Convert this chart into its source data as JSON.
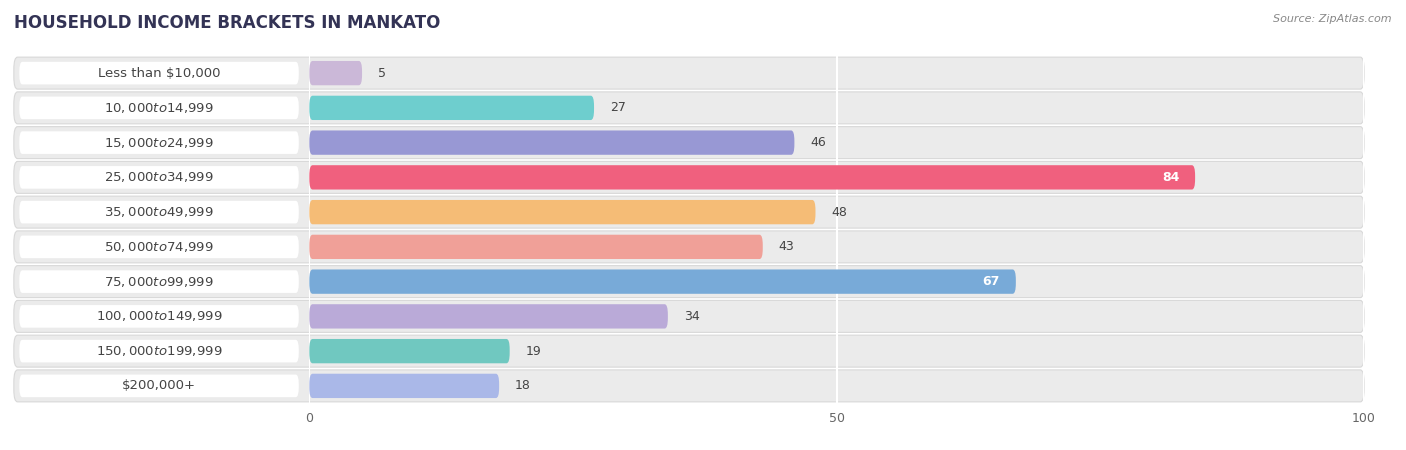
{
  "title": "HOUSEHOLD INCOME BRACKETS IN MANKATO",
  "source": "Source: ZipAtlas.com",
  "categories": [
    "Less than $10,000",
    "$10,000 to $14,999",
    "$15,000 to $24,999",
    "$25,000 to $34,999",
    "$35,000 to $49,999",
    "$50,000 to $74,999",
    "$75,000 to $99,999",
    "$100,000 to $149,999",
    "$150,000 to $199,999",
    "$200,000+"
  ],
  "values": [
    5,
    27,
    46,
    84,
    48,
    43,
    67,
    34,
    19,
    18
  ],
  "bar_colors": [
    "#cbb8d8",
    "#6ecece",
    "#9898d4",
    "#f0607e",
    "#f5bc76",
    "#f0a098",
    "#78aad8",
    "#baaad8",
    "#70c8c0",
    "#aab8e8"
  ],
  "xlim": [
    0,
    100
  ],
  "xticks": [
    0,
    50,
    100
  ],
  "title_fontsize": 12,
  "label_fontsize": 9.5,
  "value_fontsize": 9
}
